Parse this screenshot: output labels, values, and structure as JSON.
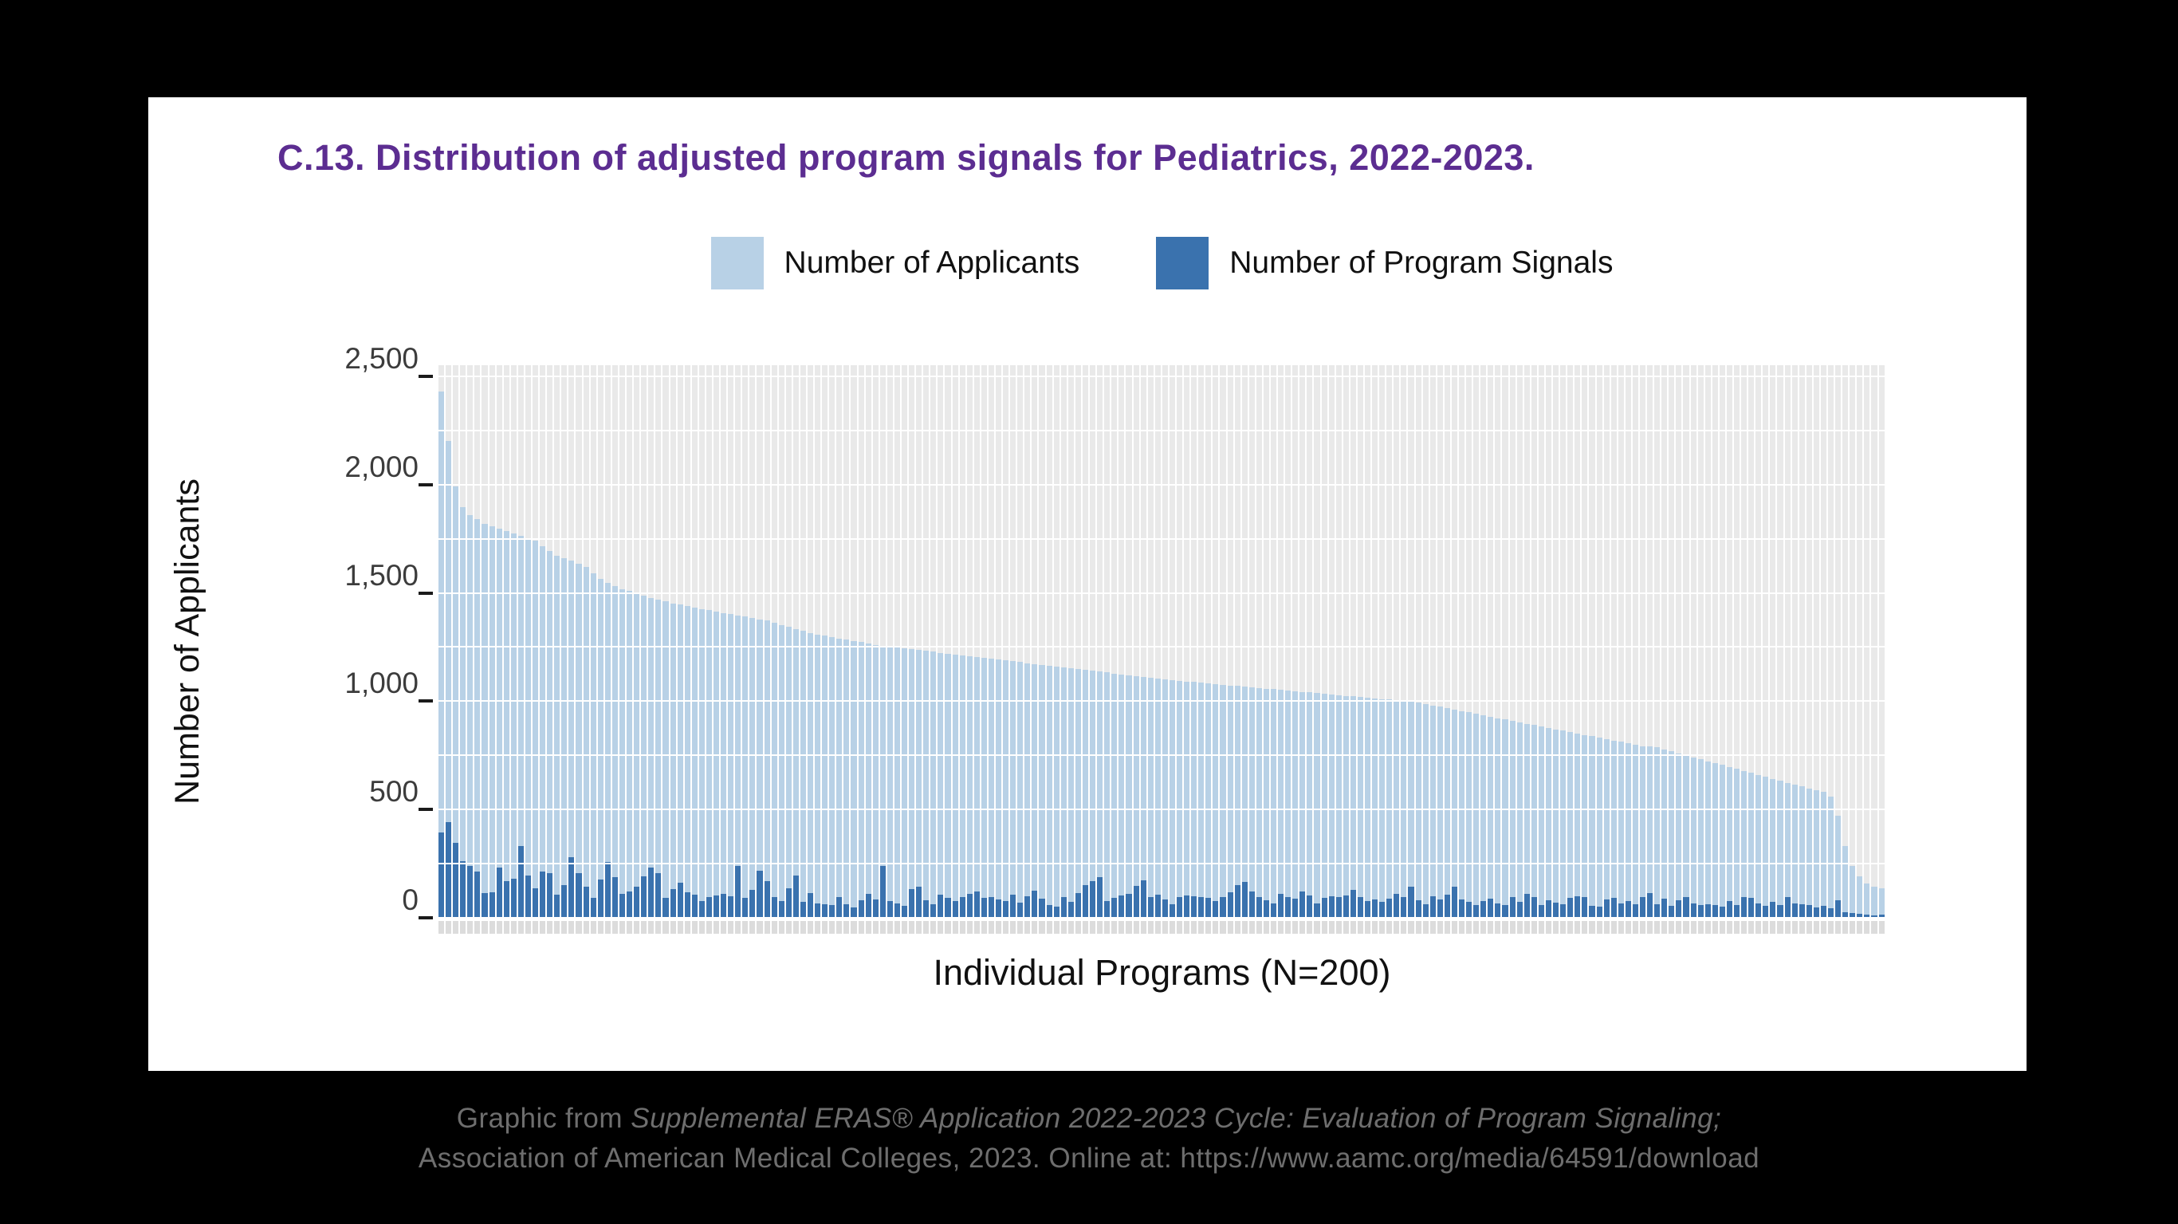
{
  "title": "C.13. Distribution of adjusted program signals for Pediatrics, 2022-2023.",
  "legend": {
    "applicants_label": "Number of Applicants",
    "signals_label": "Number of Program Signals"
  },
  "caption": {
    "line1_prefix": "Graphic from ",
    "line1_italic": "Supplemental ERAS® Application 2022-2023 Cycle: Evaluation of Program Signaling;",
    "line2": "Association of American Medical Colleges, 2023. Online at: https://www.aamc.org/media/64591/download"
  },
  "colors": {
    "title_purple": "#5c2d91",
    "applicants_blue": "#b8d1e6",
    "signals_blue": "#3a72ae",
    "panel_stripe_gray": "#e9e9e9",
    "caption_gray": "#6e6e6e",
    "background": "#000000",
    "card": "#ffffff"
  },
  "chart_data": {
    "type": "bar",
    "title": "C.13. Distribution of adjusted program signals for Pediatrics, 2022-2023.",
    "xlabel": "Individual Programs (N=200)",
    "ylabel": "Number of Applicants",
    "ylim": [
      0,
      2500
    ],
    "yticks": [
      0,
      500,
      1000,
      1500,
      2000,
      2500
    ],
    "ytick_labels": [
      "0",
      "500",
      "1,000",
      "1,500",
      "2,000",
      "2,500"
    ],
    "grid": true,
    "gridline_step": 250,
    "legend_position": "top-center",
    "n_programs": 200,
    "series": [
      {
        "name": "Number of Applicants",
        "color": "#b8d1e6",
        "values": [
          2430,
          2200,
          1990,
          1895,
          1860,
          1840,
          1820,
          1808,
          1796,
          1786,
          1776,
          1764,
          1752,
          1740,
          1716,
          1692,
          1672,
          1660,
          1650,
          1636,
          1620,
          1592,
          1566,
          1546,
          1530,
          1518,
          1508,
          1498,
          1486,
          1476,
          1468,
          1460,
          1452,
          1445,
          1438,
          1432,
          1426,
          1420,
          1414,
          1408,
          1402,
          1396,
          1390,
          1384,
          1378,
          1372,
          1362,
          1352,
          1342,
          1332,
          1324,
          1316,
          1308,
          1302,
          1296,
          1290,
          1284,
          1278,
          1272,
          1266,
          1260,
          1256,
          1252,
          1248,
          1244,
          1240,
          1236,
          1232,
          1228,
          1224,
          1220,
          1216,
          1212,
          1208,
          1204,
          1200,
          1196,
          1192,
          1188,
          1184,
          1180,
          1176,
          1172,
          1168,
          1164,
          1160,
          1156,
          1152,
          1148,
          1144,
          1140,
          1136,
          1132,
          1128,
          1124,
          1120,
          1116,
          1112,
          1108,
          1104,
          1100,
          1097,
          1094,
          1091,
          1088,
          1085,
          1082,
          1079,
          1076,
          1073,
          1070,
          1067,
          1064,
          1061,
          1058,
          1055,
          1052,
          1049,
          1046,
          1043,
          1040,
          1037,
          1034,
          1031,
          1028,
          1025,
          1022,
          1019,
          1016,
          1013,
          1010,
          1007,
          1004,
          1002,
          1000,
          994,
          987,
          981,
          974,
          968,
          961,
          955,
          948,
          942,
          935,
          929,
          922,
          916,
          909,
          903,
          896,
          890,
          883,
          877,
          870,
          864,
          857,
          851,
          844,
          838,
          831,
          825,
          818,
          812,
          805,
          799,
          792,
          790,
          786,
          777,
          768,
          759,
          750,
          741,
          732,
          723,
          714,
          705,
          696,
          687,
          678,
          669,
          660,
          651,
          642,
          633,
          624,
          615,
          606,
          597,
          588,
          580,
          560,
          470,
          330,
          240,
          190,
          160,
          145,
          135
        ]
      },
      {
        "name": "Number of Program Signals",
        "color": "#3a72ae",
        "values": [
          395,
          440,
          345,
          260,
          240,
          215,
          115,
          118,
          232,
          170,
          182,
          330,
          196,
          135,
          214,
          205,
          108,
          152,
          278,
          206,
          142,
          92,
          176,
          258,
          186,
          112,
          122,
          142,
          192,
          232,
          205,
          92,
          132,
          162,
          118,
          106,
          78,
          96,
          102,
          112,
          100,
          240,
          92,
          130,
          216,
          170,
          96,
          76,
          136,
          196,
          72,
          116,
          66,
          62,
          58,
          96,
          62,
          48,
          82,
          112,
          86,
          238,
          76,
          66,
          56,
          132,
          142,
          82,
          64,
          108,
          92,
          76,
          96,
          110,
          120,
          92,
          96,
          86,
          76,
          106,
          70,
          100,
          126,
          88,
          60,
          52,
          94,
          72,
          114,
          150,
          170,
          186,
          76,
          92,
          102,
          112,
          146,
          172,
          96,
          108,
          84,
          62,
          96,
          102,
          100,
          96,
          92,
          78,
          96,
          118,
          152,
          166,
          122,
          96,
          82,
          68,
          110,
          96,
          88,
          122,
          104,
          66,
          92,
          98,
          96,
          102,
          130,
          96,
          78,
          86,
          72,
          88,
          112,
          96,
          144,
          82,
          64,
          100,
          86,
          106,
          142,
          86,
          72,
          60,
          76,
          90,
          66,
          58,
          96,
          72,
          110,
          96,
          58,
          80,
          70,
          64,
          92,
          98,
          96,
          56,
          52,
          84,
          92,
          66,
          78,
          62,
          96,
          114,
          62,
          90,
          54,
          80,
          96,
          66,
          58,
          64,
          58,
          52,
          76,
          58,
          96,
          92,
          66,
          56,
          72,
          58,
          96,
          66,
          62,
          58,
          48,
          56,
          44,
          80,
          26,
          22,
          18,
          14,
          12,
          16
        ]
      }
    ]
  }
}
